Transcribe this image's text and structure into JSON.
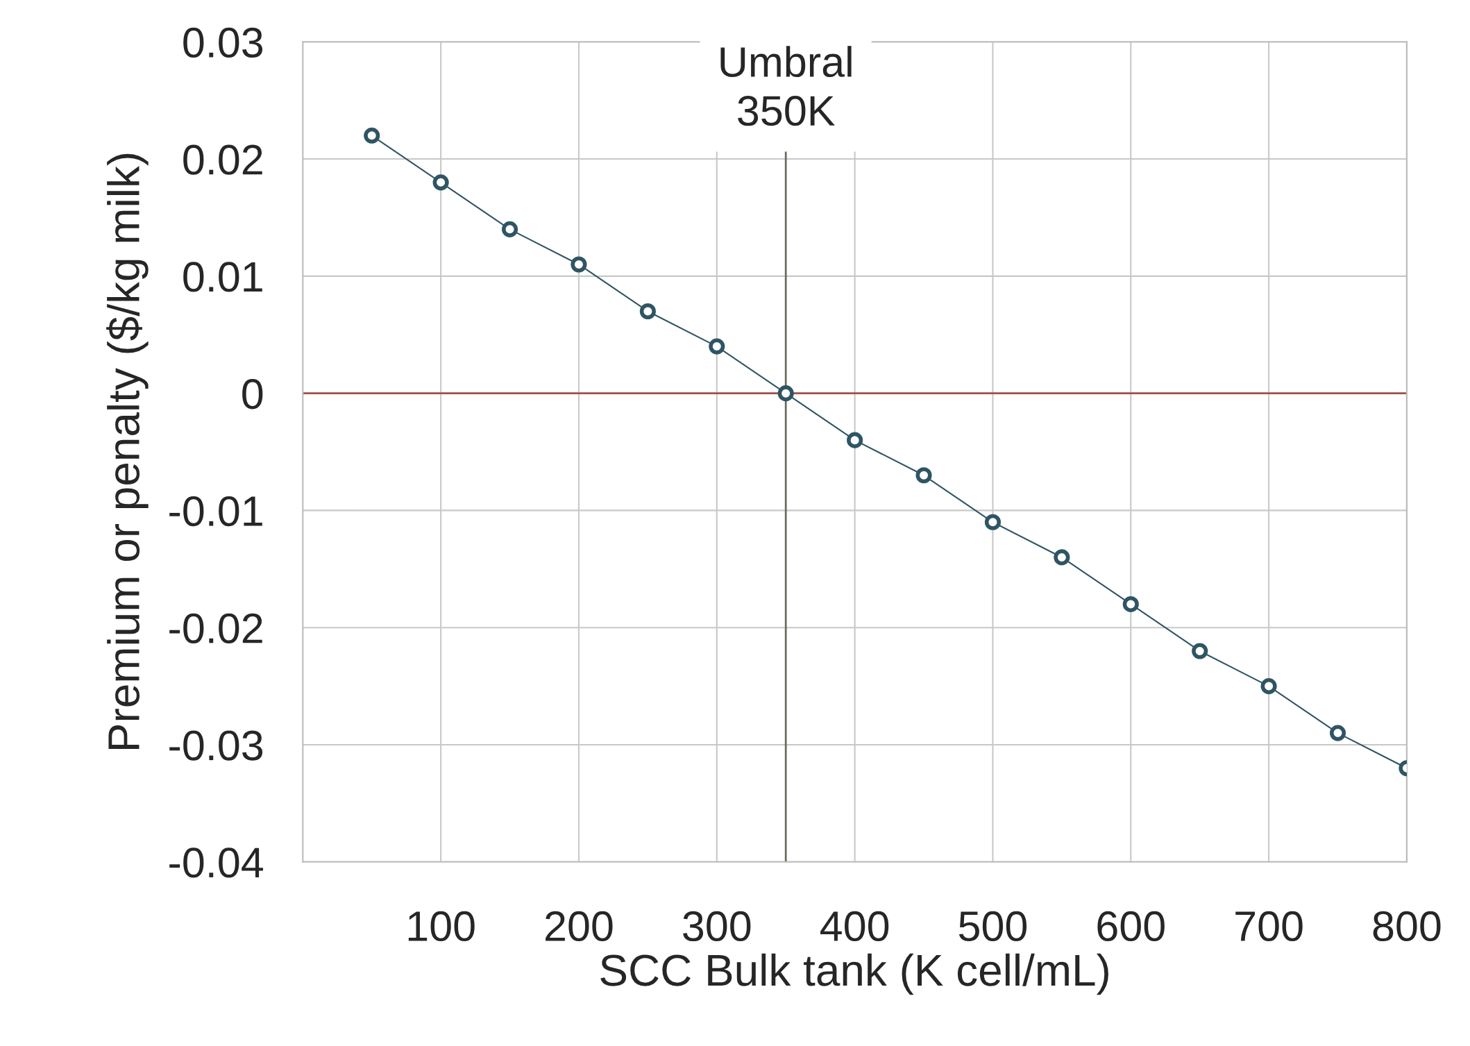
{
  "chart_data": {
    "type": "line",
    "xlabel": "SCC Bulk tank (K cell/mL)",
    "ylabel": "Premium or penalty ($/kg milk)",
    "x": [
      50,
      100,
      150,
      200,
      250,
      300,
      350,
      400,
      450,
      500,
      550,
      600,
      650,
      700,
      750,
      800
    ],
    "series": [
      {
        "color": "#2f5563",
        "values": [
          0.022,
          0.018,
          0.014,
          0.011,
          0.007,
          0.004,
          0,
          -0.004,
          -0.007,
          -0.011,
          -0.014,
          -0.018,
          -0.022,
          -0.025,
          -0.029,
          -0.032
        ]
      }
    ],
    "xlim": [
      0,
      800
    ],
    "xticks": [
      100,
      200,
      300,
      400,
      500,
      600,
      700,
      800
    ],
    "ylim": [
      -0.04,
      0.03
    ],
    "yticks": [
      -0.04,
      -0.03,
      -0.02,
      -0.01,
      0,
      0.01,
      0.02,
      0.03
    ],
    "ref_lines": [
      {
        "axis": "y",
        "value": 0,
        "color": "#a0524a"
      },
      {
        "axis": "x",
        "value": 350,
        "label": "Umbral\n350K",
        "color": "#6b6b60"
      }
    ],
    "grid": true,
    "marker": "circle",
    "line_style": "solid",
    "legend": false
  }
}
